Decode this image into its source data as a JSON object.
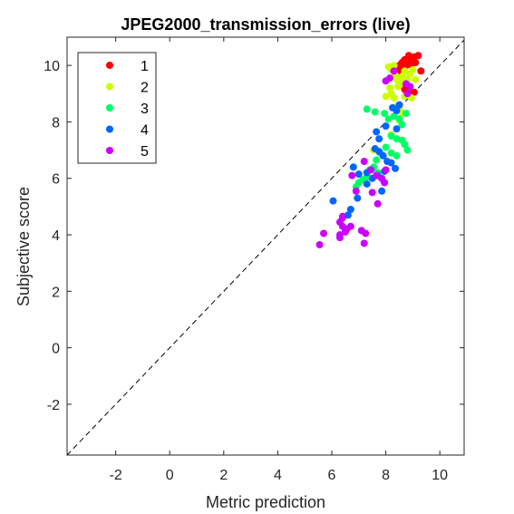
{
  "chart_data": {
    "type": "scatter",
    "title": "JPEG2000_transmission_errors (live)",
    "xlabel": "Metric prediction",
    "ylabel": "Subjective score",
    "xlim": [
      -3.8,
      10.9
    ],
    "ylim": [
      -3.8,
      11.0
    ],
    "xticks": [
      -2,
      0,
      2,
      4,
      6,
      8,
      10
    ],
    "yticks": [
      -2,
      0,
      2,
      4,
      6,
      8,
      10
    ],
    "reference_line": "y = x (dashed)",
    "grid": false,
    "legend_position": "top-left",
    "series": [
      {
        "name": "1",
        "color": "#ff0000",
        "points": [
          [
            8.5,
            10.0
          ],
          [
            8.55,
            9.9
          ],
          [
            8.6,
            10.1
          ],
          [
            8.65,
            9.95
          ],
          [
            8.7,
            10.2
          ],
          [
            8.75,
            10.0
          ],
          [
            8.8,
            10.1
          ],
          [
            8.85,
            10.35
          ],
          [
            8.9,
            10.15
          ],
          [
            8.95,
            10.0
          ],
          [
            9.0,
            10.2
          ],
          [
            9.05,
            10.3
          ],
          [
            9.1,
            10.1
          ],
          [
            9.2,
            10.35
          ],
          [
            9.3,
            9.8
          ],
          [
            8.45,
            9.8
          ],
          [
            8.5,
            8.6
          ],
          [
            8.6,
            9.3
          ],
          [
            8.7,
            9.15
          ],
          [
            8.8,
            9.2
          ],
          [
            8.9,
            9.0
          ],
          [
            9.05,
            9.05
          ]
        ]
      },
      {
        "name": "2",
        "color": "#ccff00",
        "points": [
          [
            8.1,
            9.95
          ],
          [
            8.2,
            9.85
          ],
          [
            8.3,
            10.0
          ],
          [
            8.35,
            9.65
          ],
          [
            8.4,
            9.5
          ],
          [
            8.45,
            9.25
          ],
          [
            8.5,
            9.3
          ],
          [
            8.55,
            9.4
          ],
          [
            8.6,
            9.6
          ],
          [
            8.7,
            9.8
          ],
          [
            8.8,
            9.5
          ],
          [
            8.9,
            9.7
          ],
          [
            9.0,
            9.85
          ],
          [
            9.1,
            9.5
          ],
          [
            8.2,
            9.0
          ],
          [
            8.3,
            8.85
          ],
          [
            8.4,
            8.55
          ],
          [
            8.5,
            8.45
          ],
          [
            8.6,
            8.3
          ],
          [
            8.7,
            8.9
          ],
          [
            8.95,
            8.85
          ],
          [
            7.55,
            7.0
          ],
          [
            8.2,
            7.55
          ],
          [
            8.5,
            8.05
          ],
          [
            8.15,
            9.2
          ],
          [
            8.0,
            8.9
          ]
        ]
      },
      {
        "name": "3",
        "color": "#00ff66",
        "points": [
          [
            7.3,
            8.45
          ],
          [
            7.6,
            8.35
          ],
          [
            7.95,
            8.3
          ],
          [
            8.1,
            8.1
          ],
          [
            8.3,
            8.2
          ],
          [
            8.5,
            8.1
          ],
          [
            8.6,
            7.9
          ],
          [
            8.75,
            8.3
          ],
          [
            8.2,
            7.5
          ],
          [
            8.4,
            7.4
          ],
          [
            8.6,
            7.35
          ],
          [
            8.7,
            7.2
          ],
          [
            8.8,
            7.0
          ],
          [
            8.0,
            7.1
          ],
          [
            8.2,
            6.9
          ],
          [
            8.4,
            6.8
          ],
          [
            7.8,
            6.9
          ],
          [
            7.65,
            6.65
          ],
          [
            7.55,
            6.4
          ],
          [
            7.4,
            6.3
          ],
          [
            7.3,
            6.05
          ],
          [
            7.15,
            5.95
          ],
          [
            7.0,
            5.85
          ],
          [
            6.9,
            5.7
          ],
          [
            7.7,
            6.2
          ]
        ]
      },
      {
        "name": "4",
        "color": "#0066ff",
        "points": [
          [
            8.25,
            8.5
          ],
          [
            8.4,
            8.4
          ],
          [
            8.5,
            8.6
          ],
          [
            7.65,
            7.65
          ],
          [
            7.75,
            7.4
          ],
          [
            8.0,
            7.85
          ],
          [
            8.4,
            7.75
          ],
          [
            7.6,
            7.05
          ],
          [
            7.75,
            6.95
          ],
          [
            7.9,
            6.8
          ],
          [
            8.05,
            6.6
          ],
          [
            8.2,
            6.55
          ],
          [
            8.35,
            6.35
          ],
          [
            7.95,
            6.25
          ],
          [
            7.7,
            6.1
          ],
          [
            7.5,
            6.0
          ],
          [
            7.3,
            6.2
          ],
          [
            7.0,
            6.15
          ],
          [
            6.8,
            6.4
          ],
          [
            7.3,
            5.8
          ],
          [
            7.95,
            5.85
          ],
          [
            7.85,
            5.55
          ],
          [
            6.95,
            5.3
          ],
          [
            6.05,
            5.2
          ],
          [
            6.7,
            4.9
          ],
          [
            6.6,
            4.7
          ]
        ]
      },
      {
        "name": "5",
        "color": "#cc00ff",
        "points": [
          [
            8.8,
            9.0
          ],
          [
            8.9,
            9.25
          ],
          [
            8.75,
            9.35
          ],
          [
            8.3,
            9.8
          ],
          [
            8.15,
            9.55
          ],
          [
            8.0,
            9.45
          ],
          [
            7.45,
            6.3
          ],
          [
            7.65,
            6.1
          ],
          [
            7.85,
            6.0
          ],
          [
            8.0,
            6.3
          ],
          [
            7.95,
            5.85
          ],
          [
            7.2,
            6.6
          ],
          [
            7.5,
            5.5
          ],
          [
            7.7,
            5.1
          ],
          [
            6.75,
            6.1
          ],
          [
            6.9,
            5.55
          ],
          [
            6.3,
            4.45
          ],
          [
            6.4,
            4.3
          ],
          [
            6.5,
            4.1
          ],
          [
            6.55,
            4.2
          ],
          [
            6.3,
            4.0
          ],
          [
            6.3,
            3.9
          ],
          [
            6.4,
            4.65
          ],
          [
            6.7,
            4.3
          ],
          [
            7.1,
            4.15
          ],
          [
            7.25,
            4.05
          ],
          [
            7.2,
            3.7
          ],
          [
            5.55,
            3.65
          ],
          [
            5.7,
            4.05
          ],
          [
            6.4,
            4.6
          ]
        ]
      }
    ]
  }
}
